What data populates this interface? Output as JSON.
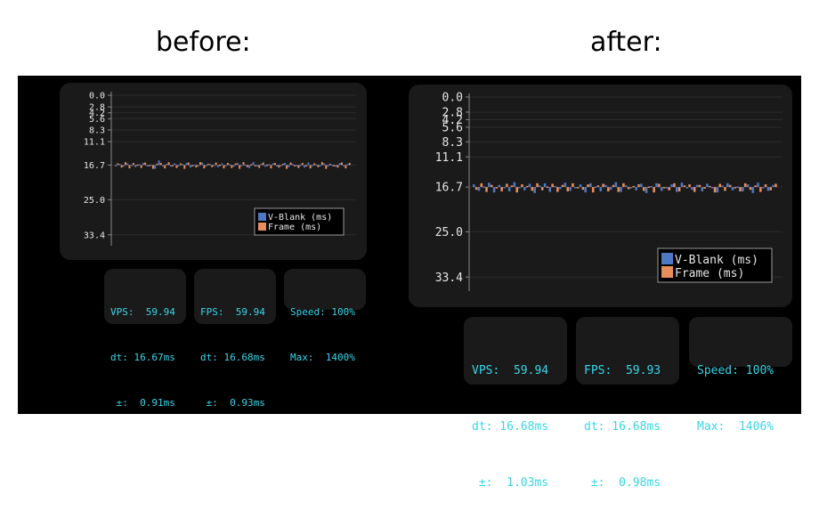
{
  "headings": {
    "before": "before:",
    "after": "after:"
  },
  "colors": {
    "vblank": "#4f78c4",
    "frame": "#e88d5c",
    "stats_text": "#38d6e8",
    "panel_bg": "#1a1a1a"
  },
  "chart_data": [
    {
      "type": "bar",
      "title": "",
      "y_ticks": [
        "0.0",
        "2.8",
        "4.2",
        "5.6",
        "8.3",
        "11.1",
        "16.7",
        "25.0",
        "33.4"
      ],
      "ylim": [
        0,
        36
      ],
      "baseline": 16.7,
      "series": [
        {
          "name": "V-Blank (ms)",
          "color": "#4f78c4",
          "mean": 16.67,
          "dev": 0.91,
          "values": [
            16.9,
            16.4,
            17.1,
            16.3,
            16.8,
            17.2,
            16.5,
            16.2,
            17.0,
            16.6,
            17.6,
            15.6,
            16.8,
            16.4,
            17.1,
            16.3,
            16.9,
            16.5,
            16.2,
            17.3,
            16.6,
            16.8,
            16.1,
            17.0,
            16.4,
            16.9,
            17.2,
            16.3,
            16.7,
            16.5,
            17.1,
            16.2,
            16.8,
            16.6,
            17.4,
            16.0,
            16.9,
            16.4,
            17.1,
            16.5,
            16.3,
            17.0,
            16.7,
            16.2,
            17.2,
            16.4,
            16.8,
            16.6,
            17.3,
            16.1,
            16.9,
            16.5,
            17.0,
            16.3,
            16.7,
            16.6,
            17.1,
            16.2,
            16.9,
            16.4
          ]
        },
        {
          "name": "Frame (ms)",
          "color": "#e88d5c",
          "mean": 16.68,
          "dev": 0.93,
          "values": [
            16.3,
            17.3,
            16.0,
            17.5,
            16.2,
            16.6,
            17.4,
            16.1,
            16.9,
            17.6,
            16.4,
            16.2,
            17.5,
            16.0,
            16.7,
            17.4,
            16.3,
            17.6,
            16.1,
            16.8,
            17.3,
            16.0,
            17.5,
            16.4,
            17.2,
            16.1,
            16.6,
            17.5,
            16.2,
            17.4,
            16.3,
            17.6,
            16.0,
            17.2,
            16.5,
            16.9,
            17.4,
            16.1,
            16.6,
            17.5,
            16.2,
            17.3,
            16.4,
            17.6,
            16.1,
            16.9,
            17.4,
            16.2,
            16.7,
            17.5,
            16.3,
            17.2,
            16.0,
            17.6,
            16.4,
            16.8,
            17.3,
            16.1,
            17.5,
            16.2
          ]
        }
      ],
      "legend": "bottom-right",
      "stats": {
        "vps": "VPS:  59.94",
        "vps_dt": "dt: 16.67ms",
        "vps_pm": " ±:  0.91ms",
        "fps": "FPS:  59.94",
        "fps_dt": "dt: 16.68ms",
        "fps_pm": " ±:  0.93ms",
        "speed": "Speed: 100%",
        "max": "Max:  1400%"
      }
    },
    {
      "type": "bar",
      "title": "",
      "y_ticks": [
        "0.0",
        "2.8",
        "4.2",
        "5.6",
        "8.3",
        "11.1",
        "16.7",
        "25.0",
        "33.4"
      ],
      "ylim": [
        0,
        36
      ],
      "baseline": 16.7,
      "series": [
        {
          "name": "V-Blank (ms)",
          "color": "#4f78c4",
          "mean": 16.68,
          "dev": 1.03,
          "values": [
            16.2,
            17.4,
            16.6,
            15.9,
            17.7,
            16.3,
            16.9,
            17.5,
            15.8,
            16.7,
            17.3,
            16.1,
            17.8,
            16.4,
            16.0,
            17.6,
            16.5,
            17.1,
            15.9,
            17.4,
            16.8,
            16.2,
            17.7,
            16.0,
            16.6,
            17.5,
            16.3,
            17.2,
            15.8,
            17.6,
            16.4,
            16.9,
            17.3,
            16.1,
            17.8,
            16.5,
            16.0,
            17.4,
            16.7,
            16.2,
            17.6,
            15.9,
            16.8,
            17.2,
            16.3,
            17.5,
            16.1,
            16.9,
            17.7,
            16.4,
            16.0,
            17.3,
            16.6,
            17.5,
            16.2,
            17.8,
            15.9,
            16.7,
            17.4,
            16.3
          ]
        },
        {
          "name": "Frame (ms)",
          "color": "#e88d5c",
          "mean": 16.68,
          "dev": 0.98,
          "values": [
            17.2,
            16.0,
            17.6,
            16.3,
            16.8,
            17.5,
            16.1,
            16.4,
            17.7,
            16.2,
            16.5,
            17.4,
            16.0,
            17.3,
            16.6,
            16.1,
            17.6,
            16.3,
            17.5,
            16.0,
            16.9,
            17.2,
            16.2,
            17.7,
            16.4,
            16.1,
            17.5,
            16.3,
            17.6,
            16.0,
            17.1,
            16.5,
            16.2,
            17.4,
            16.6,
            17.7,
            16.1,
            16.8,
            17.3,
            16.0,
            17.5,
            16.4,
            16.2,
            17.6,
            16.3,
            17.0,
            16.5,
            17.7,
            16.1,
            17.4,
            16.3,
            16.9,
            17.5,
            16.0,
            17.2,
            16.4,
            17.6,
            16.2,
            17.3,
            16.1
          ]
        }
      ],
      "legend": "bottom-right",
      "stats": {
        "vps": "VPS:  59.94",
        "vps_dt": "dt: 16.68ms",
        "vps_pm": " ±:  1.03ms",
        "fps": "FPS:  59.93",
        "fps_dt": "dt: 16.68ms",
        "fps_pm": " ±:  0.98ms",
        "speed": "Speed: 100%",
        "max": "Max:  1406%"
      }
    }
  ]
}
